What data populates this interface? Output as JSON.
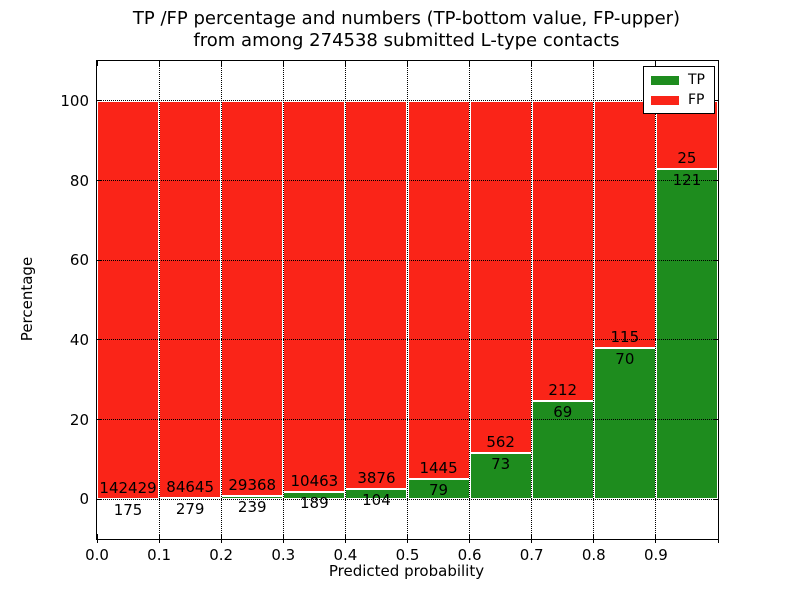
{
  "title": {
    "line1": "TP /FP percentage and numbers (TP-bottom value, FP-upper)",
    "line2": "from among 274538 submitted L-type contacts"
  },
  "axes": {
    "xlabel": "Predicted probability",
    "ylabel": "Percentage"
  },
  "legend": {
    "items": [
      {
        "label": "TP",
        "color": "#1e8c1e"
      },
      {
        "label": "FP",
        "color": "#fa2418"
      }
    ]
  },
  "chart_data": {
    "type": "bar",
    "stacked": true,
    "normalized": "percent-of-bin",
    "title": "TP /FP percentage and numbers (TP-bottom value, FP-upper) from among 274538 submitted L-type contacts",
    "xlabel": "Predicted probability",
    "ylabel": "Percentage",
    "total_submitted": 274538,
    "bin_width": 0.1,
    "bin_starts": [
      0.0,
      0.1,
      0.2,
      0.3,
      0.4,
      0.5,
      0.6,
      0.7,
      0.8,
      0.9
    ],
    "xtick_labels": [
      "0.0",
      "0.1",
      "0.2",
      "0.3",
      "0.4",
      "0.5",
      "0.6",
      "0.7",
      "0.8",
      "0.9"
    ],
    "ytick_values": [
      0,
      20,
      40,
      60,
      80,
      100
    ],
    "ytick_labels": [
      "0",
      "20",
      "40",
      "60",
      "80",
      "100"
    ],
    "xlim": [
      0.0,
      1.0
    ],
    "ylim": [
      -10,
      110
    ],
    "grid": true,
    "grid_style": "dotted",
    "legend_position": "upper right",
    "series": [
      {
        "name": "TP",
        "color": "#1e8c1e",
        "counts": [
          175,
          279,
          239,
          189,
          104,
          79,
          73,
          69,
          70,
          121
        ]
      },
      {
        "name": "FP",
        "color": "#fa2418",
        "counts": [
          142429,
          84645,
          29368,
          10463,
          3876,
          1445,
          562,
          212,
          115,
          25
        ]
      }
    ],
    "tp_percent_of_bin": [
      0.12,
      0.33,
      0.81,
      1.77,
      2.61,
      5.18,
      11.5,
      24.56,
      37.84,
      82.88
    ]
  }
}
